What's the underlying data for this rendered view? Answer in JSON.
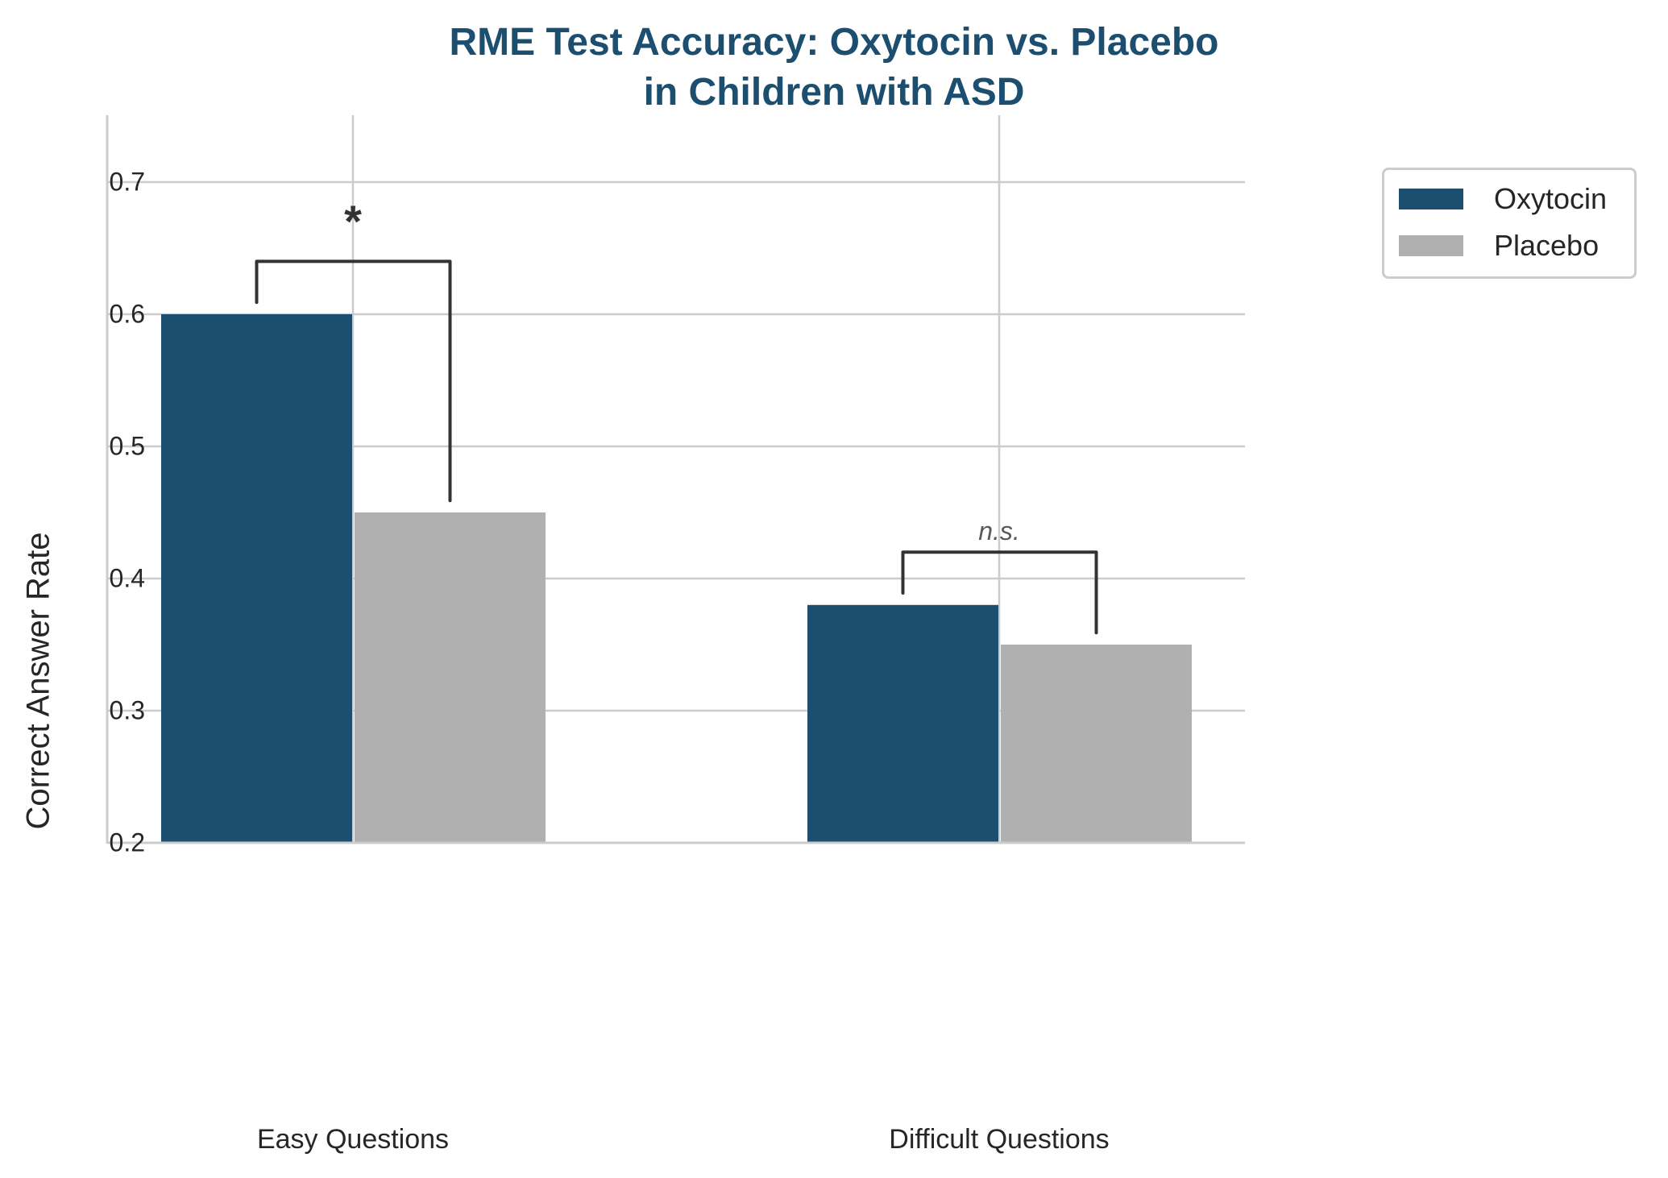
{
  "chart_data": {
    "type": "bar",
    "title": "RME Test Accuracy: Oxytocin vs. Placebo\nin Children with ASD",
    "title_lines": [
      "RME Test Accuracy: Oxytocin vs. Placebo",
      "in Children with ASD"
    ],
    "xlabel": "",
    "ylabel": "Correct Answer Rate",
    "categories": [
      "Easy Questions",
      "Difficult Questions"
    ],
    "series": [
      {
        "name": "Oxytocin",
        "color": "#1c4f6f",
        "values": [
          0.6,
          0.38
        ]
      },
      {
        "name": "Placebo",
        "color": "#b0b0b0",
        "values": [
          0.45,
          0.35
        ]
      }
    ],
    "ylim": [
      0.2,
      0.75
    ],
    "yticks": [
      "0.2",
      "0.3",
      "0.4",
      "0.5",
      "0.6",
      "0.7"
    ],
    "grid": true,
    "legend_position": "upper right",
    "annotations": [
      {
        "category": "Easy Questions",
        "text": "*",
        "bracket_y": 0.64,
        "type": "significant"
      },
      {
        "category": "Difficult Questions",
        "text": "n.s.",
        "bracket_y": 0.42,
        "type": "not significant"
      }
    ]
  },
  "legend": {
    "items": [
      {
        "label": "Oxytocin",
        "color": "#1c4f6f"
      },
      {
        "label": "Placebo",
        "color": "#b0b0b0"
      }
    ]
  },
  "colors": {
    "title": "#1c4f6f",
    "grid": "#cccccc",
    "bracket": "#333333",
    "text": "#262626"
  }
}
